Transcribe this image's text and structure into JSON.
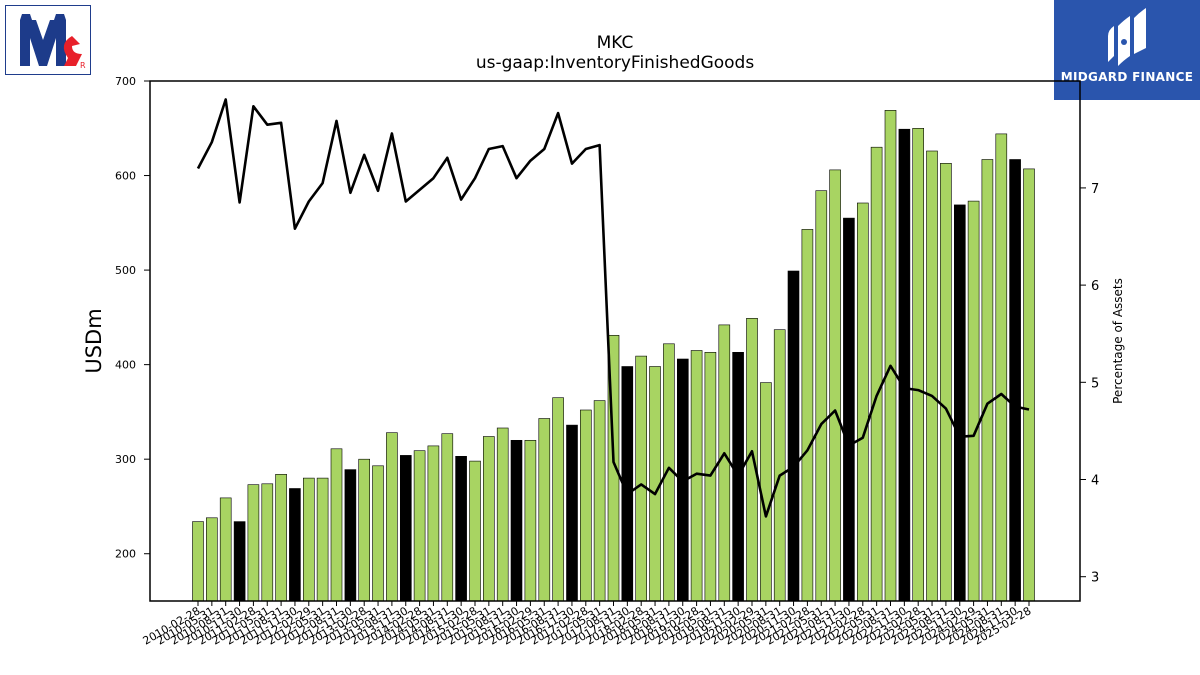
{
  "logos": {
    "left": {
      "name": "mccormick-logo",
      "mark": "R"
    },
    "right": {
      "name": "midgard-finance-logo",
      "text": "MIDGARD FINANCE",
      "color": "#2a55ad"
    }
  },
  "colors": {
    "bar_default": "#a8d462",
    "bar_highlight": "#000000",
    "line": "#000000"
  },
  "chart_data": {
    "type": "bar",
    "title": "MKC",
    "subtitle": "us-gaap:InventoryFinishedGoods",
    "ylabel": "USDm",
    "y2label": "Percentage of Assets",
    "ylim": [
      150,
      700
    ],
    "y2lim": [
      2.75,
      8.1
    ],
    "yticks": [
      200,
      300,
      400,
      500,
      600,
      700
    ],
    "y2ticks": [
      3,
      4,
      5,
      6,
      7
    ],
    "categories": [
      "2010-02-28",
      "2010-05-31",
      "2010-08-31",
      "2010-11-30",
      "2011-02-28",
      "2011-05-31",
      "2011-08-31",
      "2011-11-30",
      "2012-02-29",
      "2012-05-31",
      "2012-08-31",
      "2012-11-30",
      "2013-02-28",
      "2013-05-31",
      "2013-08-31",
      "2013-11-30",
      "2014-02-28",
      "2014-05-31",
      "2014-08-31",
      "2014-11-30",
      "2015-02-28",
      "2015-05-31",
      "2015-08-31",
      "2015-11-30",
      "2016-02-29",
      "2016-05-31",
      "2016-08-31",
      "2016-11-30",
      "2017-02-28",
      "2017-05-31",
      "2017-08-31",
      "2017-11-30",
      "2018-02-28",
      "2018-05-31",
      "2018-08-31",
      "2018-11-30",
      "2019-02-28",
      "2019-05-31",
      "2019-08-31",
      "2019-11-30",
      "2020-02-29",
      "2020-05-31",
      "2020-08-31",
      "2020-11-30",
      "2021-02-28",
      "2021-05-31",
      "2021-08-31",
      "2021-11-30",
      "2022-02-28",
      "2022-05-31",
      "2022-08-31",
      "2022-11-30",
      "2023-02-28",
      "2023-05-31",
      "2023-08-31",
      "2023-11-30",
      "2024-02-29",
      "2024-05-31",
      "2024-08-31",
      "2024-11-30",
      "2025-02-28"
    ],
    "highlight": [
      3,
      7,
      11,
      15,
      19,
      23,
      27,
      31,
      35,
      39,
      43,
      47,
      51,
      55,
      59
    ],
    "series": [
      {
        "kind": "bar",
        "axis": "left",
        "values": [
          234,
          238,
          259,
          234,
          273,
          274,
          284,
          269,
          280,
          280,
          311,
          289,
          300,
          293,
          328,
          304,
          309,
          314,
          327,
          303,
          298,
          324,
          333,
          320,
          320,
          343,
          365,
          336,
          352,
          362,
          431,
          398,
          409,
          398,
          422,
          406,
          415,
          413,
          442,
          413,
          449,
          381,
          437,
          499,
          543,
          584,
          606,
          555,
          571,
          630,
          669,
          649,
          650,
          626,
          613,
          569,
          573,
          617,
          644,
          617,
          607
        ]
      },
      {
        "kind": "line",
        "axis": "right",
        "values": [
          7.2,
          7.47,
          7.91,
          6.85,
          7.84,
          7.65,
          7.67,
          6.58,
          6.86,
          7.05,
          7.69,
          6.95,
          7.34,
          6.97,
          7.56,
          6.86,
          6.98,
          7.1,
          7.31,
          6.88,
          7.1,
          7.4,
          7.43,
          7.1,
          7.28,
          7.4,
          7.77,
          7.25,
          7.4,
          7.44,
          4.18,
          3.85,
          3.95,
          3.85,
          4.12,
          3.98,
          4.06,
          4.04,
          4.27,
          4.04,
          4.29,
          3.62,
          4.04,
          4.13,
          4.3,
          4.57,
          4.71,
          4.35,
          4.43,
          4.86,
          5.17,
          4.94,
          4.92,
          4.86,
          4.73,
          4.44,
          4.45,
          4.78,
          4.88,
          4.75,
          4.72
        ]
      }
    ],
    "grid": false,
    "legend": "none"
  }
}
